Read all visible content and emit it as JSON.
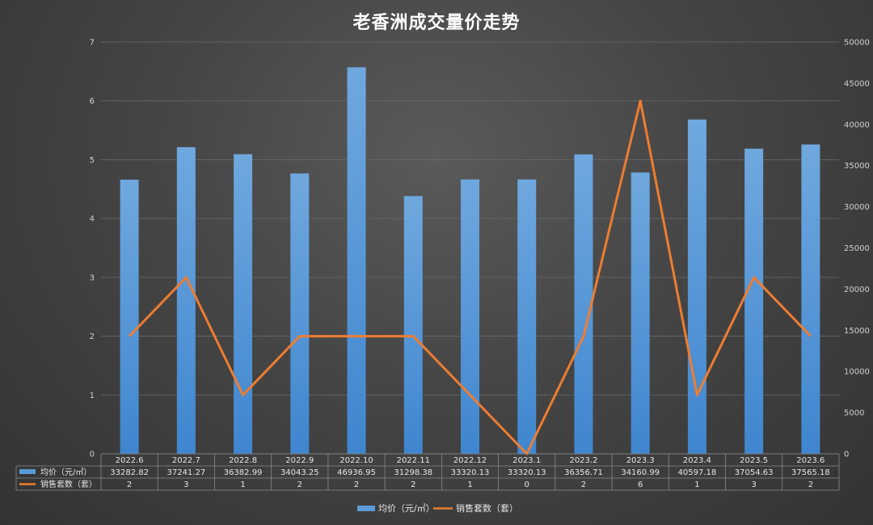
{
  "chart_data": {
    "type": "bar",
    "title": "老香洲成交量价走势",
    "categories": [
      "2022.6",
      "2022.7",
      "2022.8",
      "2022.9",
      "2022.10",
      "2022.11",
      "2022.12",
      "2023.1",
      "2023.2",
      "2023.3",
      "2023.4",
      "2023.5",
      "2023.6"
    ],
    "series": [
      {
        "name": "均价（元/㎡）",
        "type": "bar",
        "axis": "right",
        "color": "#5b9bd5",
        "values": [
          33282.82,
          37241.27,
          36382.99,
          34043.25,
          46936.95,
          31298.38,
          33320.13,
          33320.13,
          36356.71,
          34160.99,
          40597.18,
          37054.63,
          37565.18
        ],
        "labels": [
          "33282.82",
          "37241.27",
          "36382.99",
          "34043.25",
          "46936.95",
          "31298.38",
          "33320.13",
          "33320.13",
          "36356.71",
          "34160.99",
          "40597.18",
          "37054.63",
          "37565.18"
        ]
      },
      {
        "name": "销售套数（套）",
        "type": "line",
        "axis": "left",
        "color": "#ed7d31",
        "values": [
          2,
          3,
          1,
          2,
          2,
          2,
          1,
          0,
          2,
          6,
          1,
          3,
          2
        ],
        "labels": [
          "2",
          "3",
          "1",
          "2",
          "2",
          "2",
          "1",
          "0",
          "2",
          "6",
          "1",
          "3",
          "2"
        ]
      }
    ],
    "y_left": {
      "min": 0,
      "max": 7,
      "ticks": [
        "0",
        "1",
        "2",
        "3",
        "4",
        "5",
        "6",
        "7"
      ]
    },
    "y_right": {
      "min": 0,
      "max": 50000,
      "ticks": [
        "0",
        "5000",
        "10000",
        "15000",
        "20000",
        "25000",
        "30000",
        "35000",
        "40000",
        "45000",
        "50000"
      ]
    },
    "grid": true,
    "legend": "bottom",
    "data_table": true
  }
}
